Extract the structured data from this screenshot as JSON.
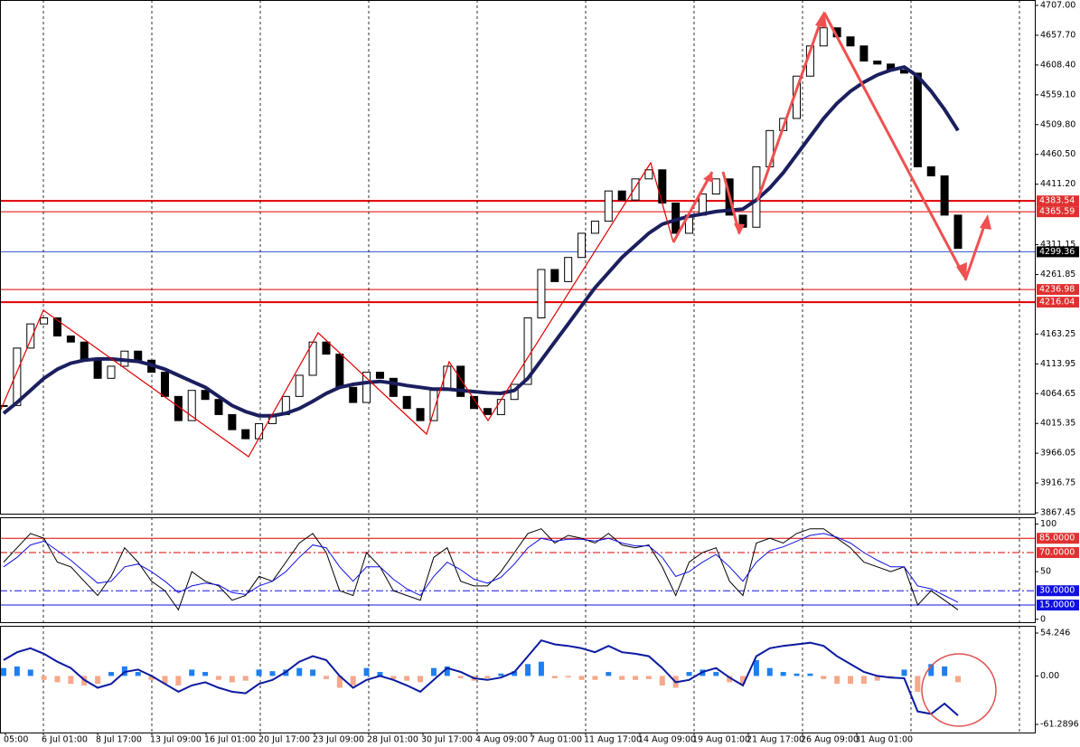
{
  "chart_data": [
    {
      "type": "candlestick",
      "closes": [
        4045,
        4140,
        4180,
        4190,
        4160,
        4150,
        4120,
        4090,
        4110,
        4135,
        4120,
        4100,
        4060,
        4020,
        4070,
        4055,
        4030,
        4005,
        3990,
        4015,
        4030,
        4060,
        4095,
        4150,
        4130,
        4075,
        4050,
        4100,
        4090,
        4060,
        4040,
        4020,
        4070,
        4110,
        4060,
        4040,
        4030,
        4055,
        4080,
        4190,
        4270,
        4250,
        4290,
        4330,
        4350,
        4400,
        4385,
        4420,
        4435,
        4380,
        4330,
        4360,
        4395,
        4420,
        4360,
        4340,
        4440,
        4500,
        4520,
        4590,
        4640,
        4670,
        4655,
        4640,
        4615,
        4610,
        4600,
        4595,
        4440,
        4425,
        4360,
        4305
      ],
      "up_color": "#ffffff",
      "down_color": "#000000",
      "ma": {
        "color": "#1b1f5e",
        "values": [
          4032,
          4050,
          4070,
          4090,
          4105,
          4115,
          4120,
          4122,
          4122,
          4120,
          4118,
          4112,
          4105,
          4095,
          4085,
          4075,
          4060,
          4045,
          4035,
          4028,
          4028,
          4032,
          4040,
          4052,
          4065,
          4075,
          4080,
          4083,
          4085,
          4082,
          4078,
          4075,
          4072,
          4072,
          4070,
          4068,
          4066,
          4065,
          4070,
          4090,
          4120,
          4150,
          4180,
          4210,
          4240,
          4265,
          4290,
          4310,
          4330,
          4345,
          4352,
          4358,
          4362,
          4366,
          4368,
          4370,
          4385,
          4405,
          4430,
          4460,
          4490,
          4520,
          4545,
          4565,
          4580,
          4592,
          4600,
          4605,
          4590,
          4565,
          4535,
          4500
        ]
      },
      "levels": [
        {
          "value": 4383.54,
          "color": "#e00000",
          "width": 2,
          "box": "#e03030"
        },
        {
          "value": 4365.59,
          "color": "#e00000",
          "width": 1,
          "box": "#e03030"
        },
        {
          "value": 4299.36,
          "color": "#3050d0",
          "width": 1,
          "box": "#000000"
        },
        {
          "value": 4236.98,
          "color": "#e00000",
          "width": 1,
          "box": "#e03030"
        },
        {
          "value": 4216.04,
          "color": "#e00000",
          "width": 2,
          "box": "#e03030"
        }
      ],
      "ylim": [
        3866,
        4716
      ],
      "yticks": [
        {
          "value": 4707,
          "label": "4707.00"
        },
        {
          "value": 4657.7,
          "label": "4657.70"
        },
        {
          "value": 4608.4,
          "label": "4608.40"
        },
        {
          "value": 4559.1,
          "label": "4559.10"
        },
        {
          "value": 4509.8,
          "label": "4509.80"
        },
        {
          "value": 4460.5,
          "label": "4460.50"
        },
        {
          "value": 4411.2,
          "label": "4411.20"
        },
        {
          "value": 4311.15,
          "label": "4311.15"
        },
        {
          "value": 4261.85,
          "label": "4261.85"
        },
        {
          "value": 4163.25,
          "label": "4163.25"
        },
        {
          "value": 4113.95,
          "label": "4113.95"
        },
        {
          "value": 4064.65,
          "label": "4064.65"
        },
        {
          "value": 4015.35,
          "label": "4015.35"
        },
        {
          "value": 3966.05,
          "label": "3966.05"
        },
        {
          "value": 3916.75,
          "label": "3916.75"
        },
        {
          "value": 3867.45,
          "label": "3867.45"
        }
      ]
    },
    {
      "type": "line",
      "series": [
        {
          "color": "#000000",
          "values": [
            60,
            75,
            90,
            85,
            60,
            55,
            40,
            25,
            45,
            75,
            60,
            40,
            30,
            10,
            50,
            40,
            35,
            20,
            25,
            45,
            40,
            60,
            80,
            90,
            70,
            30,
            25,
            70,
            55,
            30,
            25,
            20,
            65,
            75,
            40,
            35,
            35,
            50,
            70,
            90,
            95,
            80,
            88,
            85,
            80,
            90,
            78,
            75,
            78,
            55,
            25,
            60,
            70,
            75,
            40,
            25,
            80,
            85,
            80,
            90,
            95,
            95,
            85,
            75,
            60,
            55,
            50,
            55,
            15,
            30,
            20,
            10
          ]
        },
        {
          "color": "#1010e0",
          "values": [
            55,
            65,
            78,
            82,
            72,
            62,
            50,
            38,
            40,
            55,
            58,
            50,
            40,
            28,
            35,
            38,
            36,
            28,
            26,
            35,
            40,
            50,
            65,
            78,
            75,
            55,
            40,
            55,
            55,
            42,
            32,
            25,
            45,
            60,
            52,
            42,
            38,
            44,
            58,
            75,
            85,
            82,
            84,
            84,
            82,
            85,
            80,
            77,
            77,
            65,
            45,
            50,
            60,
            68,
            55,
            40,
            60,
            72,
            76,
            82,
            88,
            90,
            86,
            80,
            70,
            62,
            55,
            55,
            35,
            32,
            25,
            18
          ]
        }
      ],
      "levels": [
        {
          "value": 85,
          "label": "85.0000",
          "color": "#e00000",
          "dash": "",
          "box": "#e03030"
        },
        {
          "value": 70,
          "label": "70.0000",
          "color": "#e00000",
          "dash": "8 3 2 3",
          "box": "#e03030"
        },
        {
          "value": 30,
          "label": "30.0000",
          "color": "#1010e0",
          "dash": "8 3 2 3",
          "box": "#1010e0"
        },
        {
          "value": 15,
          "label": "15.0000",
          "color": "#1010e0",
          "dash": "",
          "box": "#1010e0"
        }
      ],
      "ylim": [
        -3,
        107
      ],
      "yticks": [
        100,
        50,
        0
      ]
    },
    {
      "type": "macd",
      "bars": {
        "up_color": "#1e7ff0",
        "down_color": "#f6a88a",
        "values": [
          10,
          12,
          8,
          -5,
          -8,
          -10,
          -12,
          -10,
          5,
          12,
          5,
          -5,
          -10,
          -12,
          8,
          5,
          -5,
          -8,
          -6,
          8,
          6,
          8,
          10,
          8,
          -4,
          -15,
          -12,
          10,
          5,
          -4,
          -6,
          -8,
          10,
          12,
          -3,
          -6,
          -3,
          3,
          6,
          15,
          18,
          -3,
          -2,
          -5,
          -5,
          5,
          -5,
          -5,
          -4,
          -12,
          -15,
          5,
          8,
          5,
          -8,
          -10,
          20,
          10,
          5,
          3,
          3,
          -4,
          -10,
          -10,
          -10,
          -6,
          -3,
          8,
          -20,
          15,
          12,
          -8
        ]
      },
      "series": [
        {
          "color": "#0a1aa0",
          "values": [
            20,
            30,
            35,
            28,
            18,
            10,
            -5,
            -15,
            -10,
            5,
            8,
            0,
            -10,
            -20,
            -12,
            -8,
            -15,
            -20,
            -22,
            -10,
            -5,
            5,
            18,
            25,
            20,
            0,
            -15,
            -5,
            0,
            -5,
            -12,
            -20,
            -5,
            10,
            5,
            -3,
            -5,
            -2,
            5,
            25,
            45,
            40,
            38,
            35,
            30,
            38,
            30,
            28,
            25,
            10,
            -8,
            -5,
            5,
            10,
            -2,
            -12,
            25,
            35,
            38,
            40,
            42,
            38,
            25,
            15,
            5,
            0,
            -2,
            -3,
            -45,
            -48,
            -35,
            -50
          ]
        }
      ],
      "ylim": [
        -71.6,
        63.4
      ],
      "yticks": [
        54.246,
        {
          "value": 0,
          "label": "0.00"
        },
        -61.2896
      ],
      "x_labels": [
        "05:00",
        "6 Jul 01:00",
        "8 Jul 17:00",
        "13 Jul 09:00",
        "16 Jul 01:00",
        "20 Jul 17:00",
        "23 Jul 09:00",
        "28 Jul 01:00",
        "30 Jul 17:00",
        "4 Aug 09:00",
        "7 Aug 01:00",
        "11 Aug 17:00",
        "14 Aug 09:00",
        "19 Aug 01:00",
        "21 Aug 17:00",
        "26 Aug 09:00",
        "31 Aug 01:00"
      ]
    }
  ]
}
